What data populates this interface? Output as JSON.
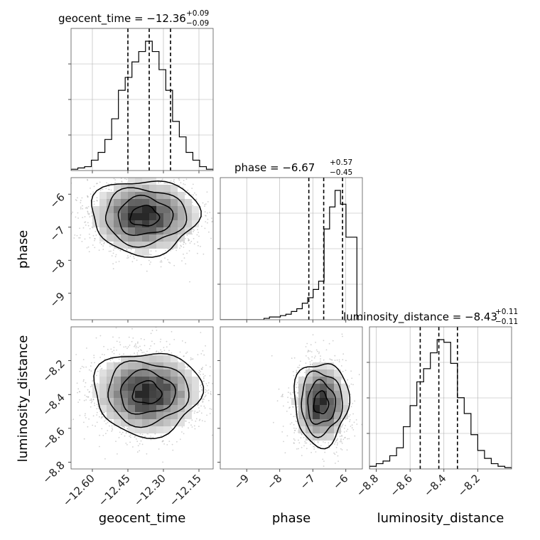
{
  "chart_data": {
    "type": "corner",
    "parameters": [
      {
        "name": "geocent_time",
        "title": "geocent_time = −12.36",
        "title_plus": "+0.09",
        "title_minus": "−0.09",
        "range": [
          -12.69,
          -12.09
        ],
        "ticks": [
          -12.6,
          -12.45,
          -12.3,
          -12.15
        ],
        "tick_labels": [
          "−12.60",
          "−12.45",
          "−12.30",
          "−12.15"
        ],
        "quantiles": [
          -12.45,
          -12.36,
          -12.27
        ],
        "histogram": [
          1,
          2,
          3,
          8,
          14,
          24,
          40,
          62,
          72,
          84,
          92,
          100,
          92,
          78,
          62,
          38,
          26,
          14,
          8,
          3,
          1
        ]
      },
      {
        "name": "phase",
        "title": "phase = −6.67",
        "title_plus": "+0.57",
        "title_minus": "−0.45",
        "range": [
          -9.8,
          -5.5
        ],
        "ticks": [
          -9,
          -8,
          -7,
          -6
        ],
        "tick_labels": [
          "−9",
          "−8",
          "−7",
          "−6"
        ],
        "quantiles": [
          -7.12,
          -6.67,
          -6.1
        ],
        "histogram": [
          0,
          0,
          0,
          0,
          0,
          0,
          0,
          0,
          0.5,
          1,
          1,
          1.5,
          2,
          3,
          4,
          6,
          8,
          11,
          14,
          33,
          41,
          47,
          42,
          30,
          30,
          0
        ]
      },
      {
        "name": "luminosity_distance",
        "title": "luminosity_distance = −8.43",
        "title_plus": "+0.11",
        "title_minus": "−0.11",
        "range": [
          -8.84,
          -8.0
        ],
        "ticks": [
          -8.8,
          -8.6,
          -8.4,
          -8.2
        ],
        "tick_labels": [
          "−8.8",
          "−8.6",
          "−8.4",
          "−8.2"
        ],
        "quantiles": [
          -8.54,
          -8.43,
          -8.32
        ],
        "histogram": [
          2,
          4,
          6,
          10,
          16,
          32,
          48,
          66,
          76,
          88,
          98,
          96,
          80,
          54,
          42,
          26,
          14,
          8,
          4,
          2,
          1
        ]
      }
    ],
    "pairs": [
      {
        "x": "geocent_time",
        "y": "phase",
        "center": [
          -12.38,
          -6.67
        ],
        "contour_levels": [
          "0.118",
          "0.393",
          "0.675",
          "0.864"
        ]
      },
      {
        "x": "geocent_time",
        "y": "luminosity_distance",
        "center": [
          -12.37,
          -8.39
        ],
        "contour_levels": [
          "0.118",
          "0.393",
          "0.675",
          "0.864"
        ]
      },
      {
        "x": "phase",
        "y": "luminosity_distance",
        "center": [
          -6.75,
          -8.45
        ],
        "contour_levels": [
          "0.118",
          "0.393",
          "0.675",
          "0.864"
        ]
      }
    ],
    "grid": true,
    "legend": "none"
  }
}
